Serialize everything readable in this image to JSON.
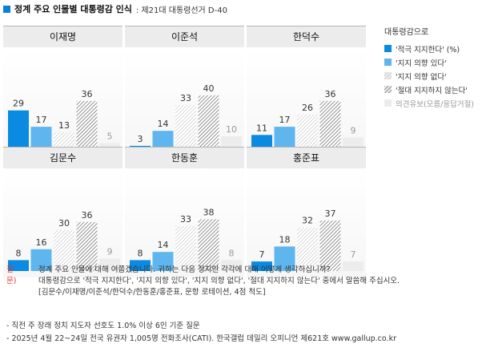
{
  "title": {
    "main": "정계 주요 인물별 대통령감 인식",
    "sub": ": 제21대 대통령선거 D-40"
  },
  "legend": {
    "title": "대통령감으로",
    "items": [
      {
        "label": "'적극 지지한다' (%)",
        "key": "strong_support"
      },
      {
        "label": "'지지 의향 있다'",
        "key": "willing"
      },
      {
        "label": "'지지 의향 없다'",
        "key": "unwilling"
      },
      {
        "label": "'절대 지지하지 않는다'",
        "key": "never"
      },
      {
        "label": "의견유보(모름/응답거절)",
        "key": "reserved"
      }
    ]
  },
  "colors": {
    "strong_support": "#0a8ae0",
    "willing": "#5fb6ee",
    "unwilling_stripe": "#b8b8b8",
    "never_stripe": "#6e6e6e",
    "reserved": "#ececec",
    "label_normal": "#333333",
    "label_reserved": "#9a9a9a",
    "accent": "#0a7fd6"
  },
  "chart_data": {
    "type": "bar",
    "unit": "%",
    "ylim": [
      0,
      40
    ],
    "categories": [
      "'적극 지지한다'",
      "'지지 의향 있다'",
      "'지지 의향 없다'",
      "'절대 지지하지 않는다'",
      "의견유보(모름/응답거절)"
    ],
    "panels": [
      {
        "name": "이재명",
        "values": [
          29,
          17,
          13,
          36,
          5
        ]
      },
      {
        "name": "이준석",
        "values": [
          3,
          14,
          33,
          40,
          10
        ]
      },
      {
        "name": "한덕수",
        "values": [
          11,
          17,
          26,
          36,
          9
        ]
      },
      {
        "name": "김문수",
        "values": [
          8,
          16,
          30,
          36,
          9
        ]
      },
      {
        "name": "한동훈",
        "values": [
          8,
          14,
          33,
          38,
          8
        ]
      },
      {
        "name": "홍준표",
        "values": [
          7,
          18,
          32,
          37,
          7
        ]
      }
    ]
  },
  "question": {
    "label": "질문)",
    "lines": [
      "정계 주요 인물에 대해 여쭙겠습니다. 귀하는 다음 정치인 각각에 대해 어떻게 생각하십니까?",
      "대통령감으로 '적극 지지한다', '지지 의향 있다', '지지 의향 없다', '절대 지지하지 않는다' 중에서 말씀해 주십시오.",
      "[김문수/이재명/이준석/한덕수/한동훈/홍준표, 문항 로테이션, 4점 척도]"
    ]
  },
  "notes": [
    "- 직전 주 장래 정치 지도자 선호도 1.0% 이상 6인 기준 질문",
    "- 2025년 4월 22~24일 전국 유권자 1,005명 전화조사(CATI). 한국갤럽 데일리 오피니언 제621호 www.gallup.co.kr"
  ]
}
